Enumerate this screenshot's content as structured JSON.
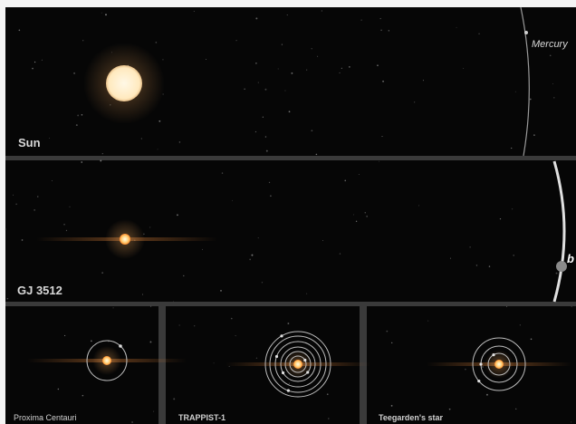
{
  "panels": {
    "sun": {
      "label": "Sun",
      "planet": "Mercury"
    },
    "gj3512": {
      "label": "GJ 3512",
      "planet": "b"
    },
    "proxima": {
      "label": "Proxima Centauri"
    },
    "trappist": {
      "label": "TRAPPIST-1"
    },
    "teegarden": {
      "label": "Teegarden's star"
    }
  }
}
